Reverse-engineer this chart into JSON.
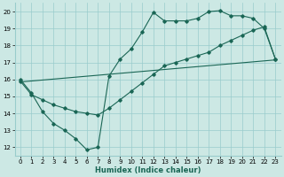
{
  "xlabel": "Humidex (Indice chaleur)",
  "bg_color": "#cce8e4",
  "grid_color": "#99cccc",
  "line_color": "#1a6655",
  "xlim": [
    -0.5,
    23.5
  ],
  "ylim": [
    11.5,
    20.5
  ],
  "xticks": [
    0,
    1,
    2,
    3,
    4,
    5,
    6,
    7,
    8,
    9,
    10,
    11,
    12,
    13,
    14,
    15,
    16,
    17,
    18,
    19,
    20,
    21,
    22,
    23
  ],
  "yticks": [
    12,
    13,
    14,
    15,
    16,
    17,
    18,
    19,
    20
  ],
  "line1_x": [
    0,
    1,
    2,
    3,
    4,
    5,
    6,
    7,
    8,
    9,
    10,
    11,
    12,
    13,
    14,
    15,
    16,
    17,
    18,
    19,
    20,
    21,
    22,
    23
  ],
  "line1_y": [
    16.0,
    15.2,
    14.1,
    13.4,
    13.0,
    12.5,
    11.85,
    12.0,
    16.2,
    17.2,
    17.8,
    18.8,
    19.95,
    19.45,
    19.45,
    19.45,
    19.6,
    20.0,
    20.05,
    19.75,
    19.75,
    19.6,
    19.0,
    17.2
  ],
  "line2_x": [
    0,
    1,
    2,
    3,
    4,
    5,
    6,
    7,
    8,
    9,
    10,
    11,
    12,
    13,
    14,
    15,
    16,
    17,
    18,
    19,
    20,
    21,
    22,
    23
  ],
  "line2_y": [
    15.9,
    15.1,
    14.8,
    14.5,
    14.3,
    14.1,
    14.0,
    13.9,
    14.3,
    14.8,
    15.3,
    15.8,
    16.3,
    16.8,
    17.0,
    17.2,
    17.4,
    17.6,
    18.0,
    18.3,
    18.6,
    18.9,
    19.1,
    17.2
  ],
  "line3_x": [
    0,
    23
  ],
  "line3_y": [
    15.85,
    17.15
  ]
}
